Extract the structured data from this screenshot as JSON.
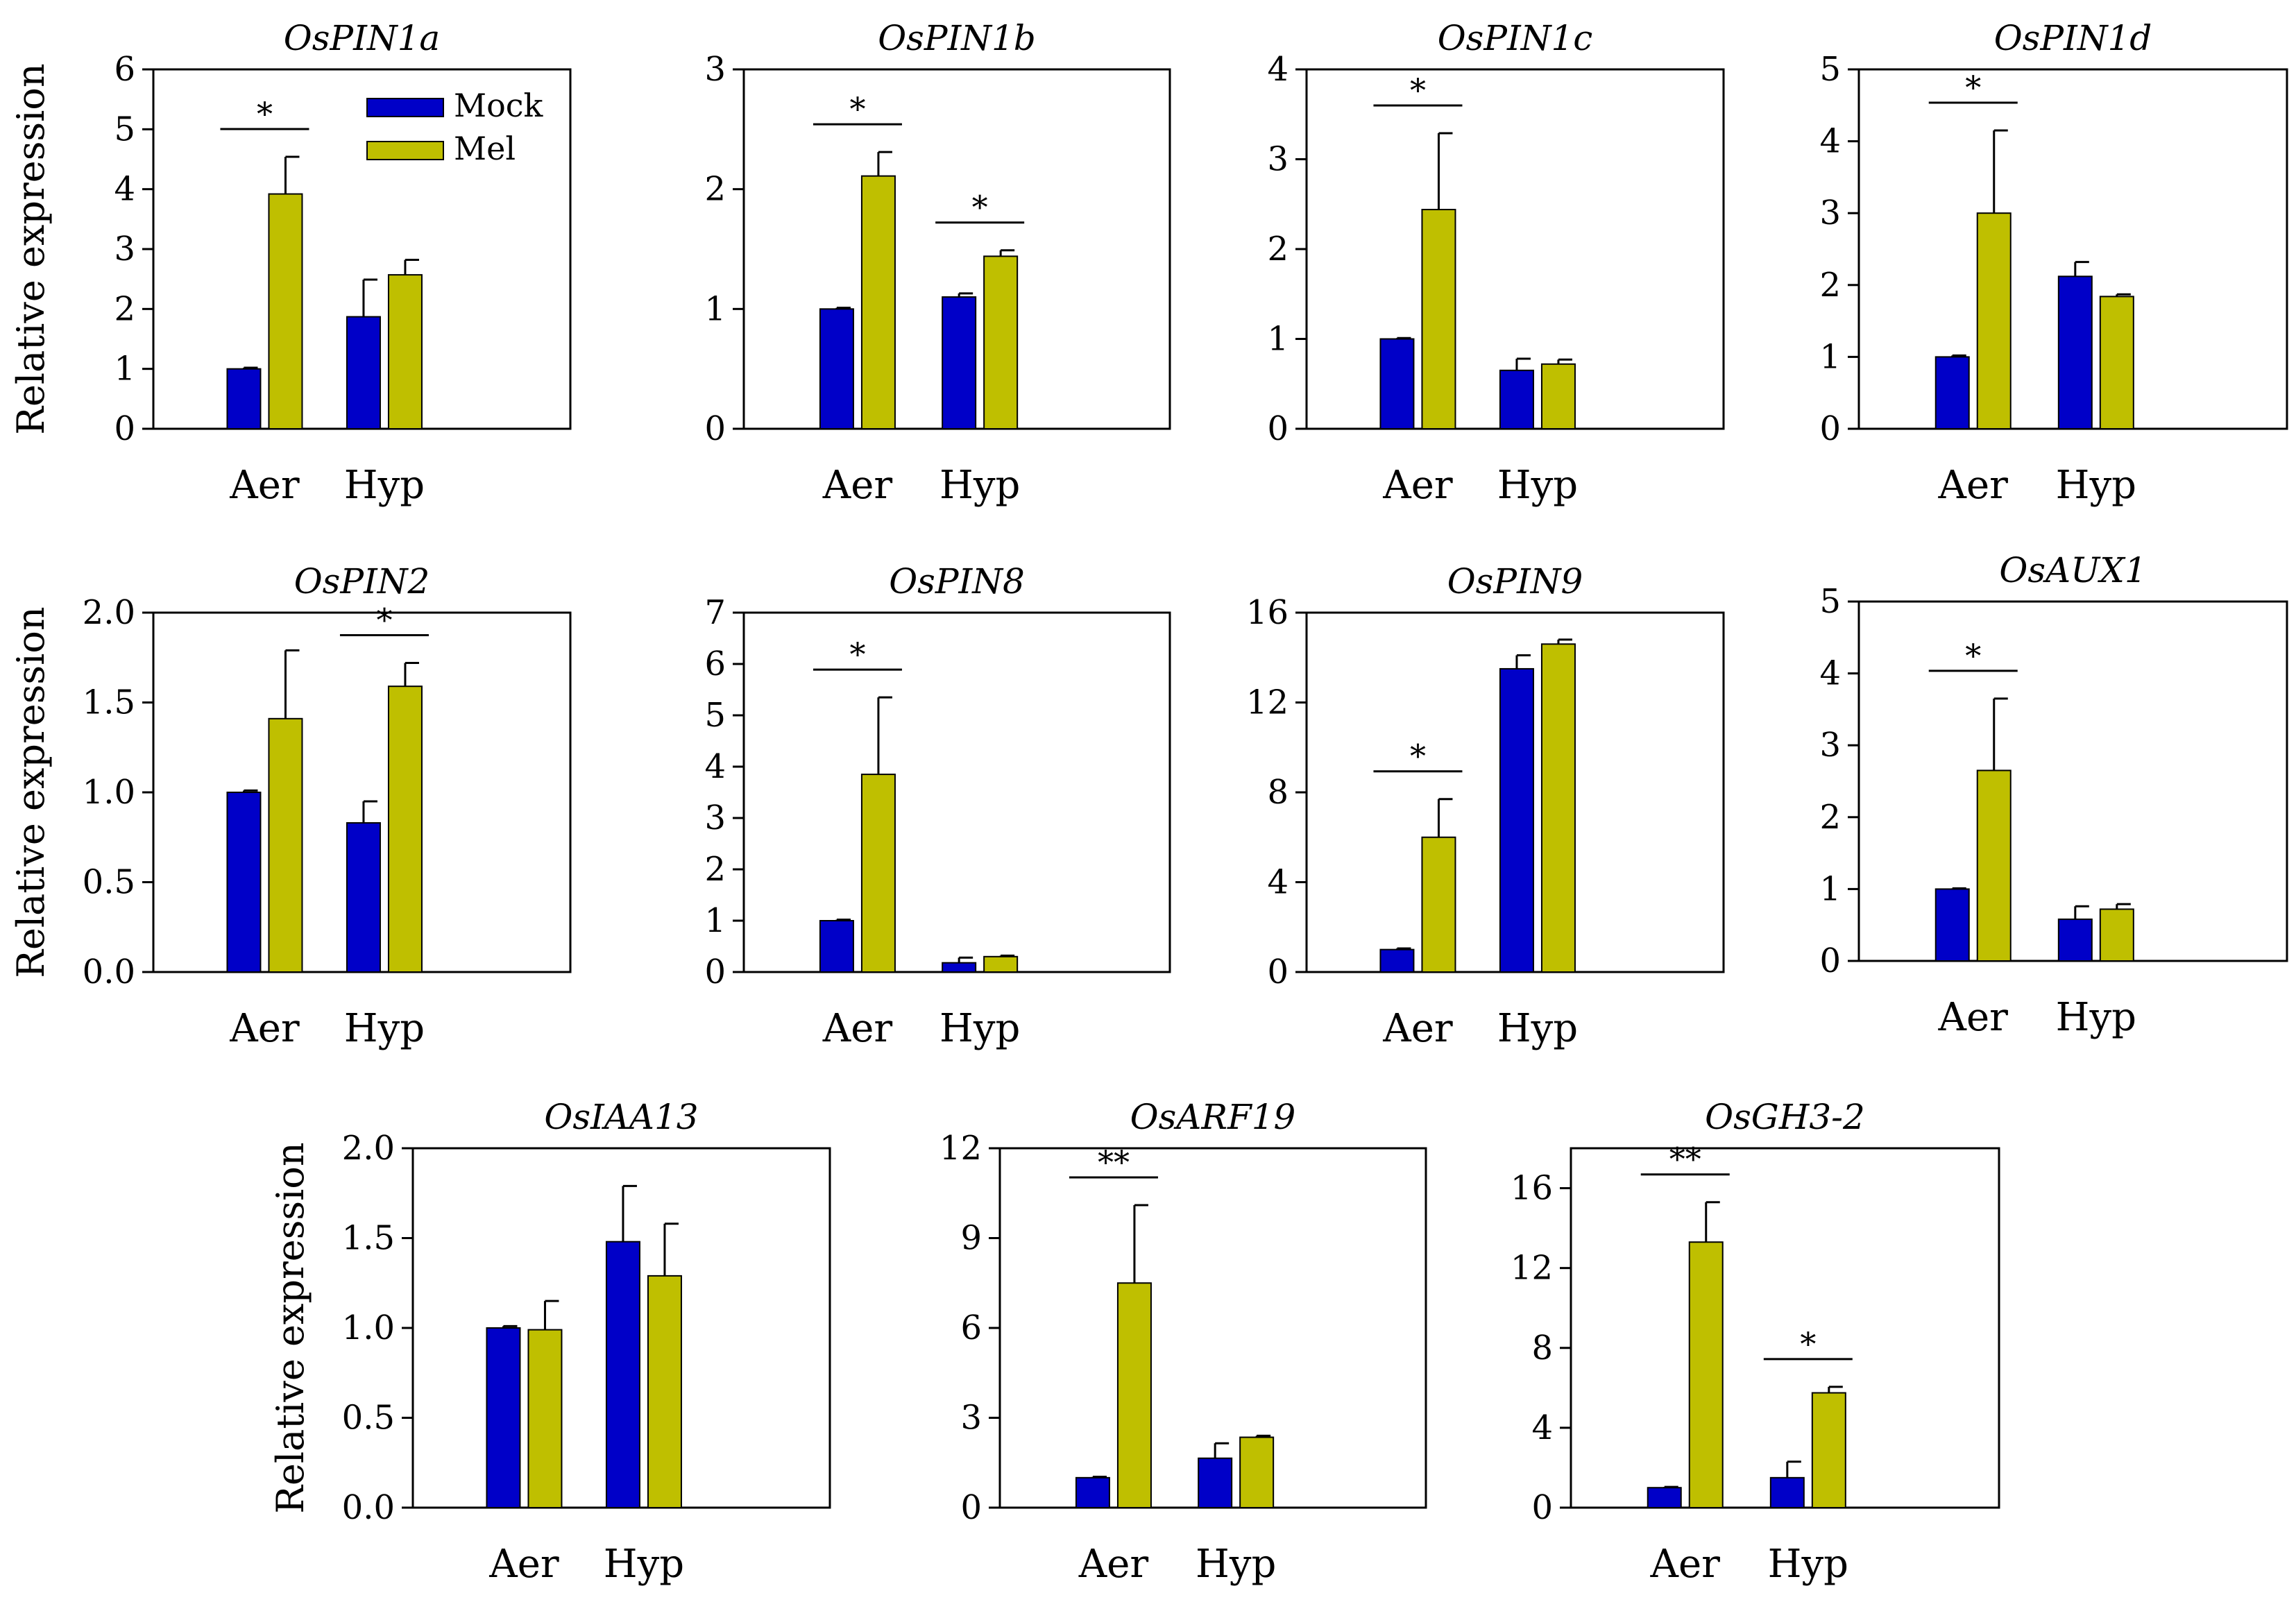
{
  "figure": {
    "ylabel": "Relative expression",
    "categories": [
      "Aer",
      "Hyp"
    ],
    "legend": {
      "items": [
        {
          "label": "Mock"
        },
        {
          "label": "Mel"
        }
      ]
    },
    "colors": {
      "mock": "#0000c8",
      "mel": "#bfbf00",
      "axis": "#000000"
    }
  },
  "chart_data": [
    {
      "type": "bar",
      "title": "OsPIN1a",
      "ylabel": "Relative expression",
      "categories": [
        "Aer",
        "Hyp"
      ],
      "ylim": [
        0,
        6
      ],
      "ticks": [
        "0",
        "1",
        "2",
        "3",
        "4",
        "5",
        "6"
      ],
      "series": [
        {
          "name": "Mock",
          "values": [
            1.0,
            1.87
          ],
          "errors": [
            0.02,
            0.62
          ]
        },
        {
          "name": "Mel",
          "values": [
            3.92,
            2.57
          ],
          "errors": [
            0.62,
            0.25
          ]
        }
      ],
      "significance": [
        {
          "category": "Aer",
          "label": "*"
        }
      ]
    },
    {
      "type": "bar",
      "title": "OsPIN1b",
      "ylabel": "",
      "categories": [
        "Aer",
        "Hyp"
      ],
      "ylim": [
        0,
        3
      ],
      "ticks": [
        "0",
        "1",
        "2",
        "3"
      ],
      "series": [
        {
          "name": "Mock",
          "values": [
            1.0,
            1.1
          ],
          "errors": [
            0.01,
            0.03
          ]
        },
        {
          "name": "Mel",
          "values": [
            2.11,
            1.44
          ],
          "errors": [
            0.2,
            0.05
          ]
        }
      ],
      "significance": [
        {
          "category": "Aer",
          "label": "*"
        },
        {
          "category": "Hyp",
          "label": "*"
        }
      ]
    },
    {
      "type": "bar",
      "title": "OsPIN1c",
      "ylabel": "",
      "categories": [
        "Aer",
        "Hyp"
      ],
      "ylim": [
        0,
        4
      ],
      "ticks": [
        "0",
        "1",
        "2",
        "3",
        "4"
      ],
      "series": [
        {
          "name": "Mock",
          "values": [
            1.0,
            0.65
          ],
          "errors": [
            0.01,
            0.13
          ]
        },
        {
          "name": "Mel",
          "values": [
            2.44,
            0.72
          ],
          "errors": [
            0.85,
            0.05
          ]
        }
      ],
      "significance": [
        {
          "category": "Aer",
          "label": "*"
        }
      ]
    },
    {
      "type": "bar",
      "title": "OsPIN1d",
      "ylabel": "",
      "categories": [
        "Aer",
        "Hyp"
      ],
      "ylim": [
        0,
        5
      ],
      "ticks": [
        "0",
        "1",
        "2",
        "3",
        "4",
        "5"
      ],
      "series": [
        {
          "name": "Mock",
          "values": [
            1.0,
            2.12
          ],
          "errors": [
            0.02,
            0.2
          ]
        },
        {
          "name": "Mel",
          "values": [
            3.0,
            1.84
          ],
          "errors": [
            1.15,
            0.03
          ]
        }
      ],
      "significance": [
        {
          "category": "Aer",
          "label": "*"
        }
      ]
    },
    {
      "type": "bar",
      "title": "OsPIN2",
      "ylabel": "Relative expression",
      "categories": [
        "Aer",
        "Hyp"
      ],
      "ylim": [
        0,
        2
      ],
      "ticks": [
        "0.0",
        "0.5",
        "1.0",
        "1.5",
        "2.0"
      ],
      "series": [
        {
          "name": "Mock",
          "values": [
            1.0,
            0.83
          ],
          "errors": [
            0.01,
            0.12
          ]
        },
        {
          "name": "Mel",
          "values": [
            1.41,
            1.59
          ],
          "errors": [
            0.38,
            0.13
          ]
        }
      ],
      "significance": [
        {
          "category": "Hyp",
          "label": "*"
        }
      ]
    },
    {
      "type": "bar",
      "title": "OsPIN8",
      "ylabel": "",
      "categories": [
        "Aer",
        "Hyp"
      ],
      "ylim": [
        0,
        7
      ],
      "ticks": [
        "0",
        "1",
        "2",
        "3",
        "4",
        "5",
        "6",
        "7"
      ],
      "series": [
        {
          "name": "Mock",
          "values": [
            1.0,
            0.18
          ],
          "errors": [
            0.02,
            0.1
          ]
        },
        {
          "name": "Mel",
          "values": [
            3.85,
            0.3
          ],
          "errors": [
            1.5,
            0.02
          ]
        }
      ],
      "significance": [
        {
          "category": "Aer",
          "label": "*"
        }
      ]
    },
    {
      "type": "bar",
      "title": "OsPIN9",
      "ylabel": "",
      "categories": [
        "Aer",
        "Hyp"
      ],
      "ylim": [
        0,
        16
      ],
      "ticks": [
        "0",
        "4",
        "8",
        "12",
        "16"
      ],
      "series": [
        {
          "name": "Mock",
          "values": [
            1.0,
            13.5
          ],
          "errors": [
            0.05,
            0.6
          ]
        },
        {
          "name": "Mel",
          "values": [
            6.0,
            14.6
          ],
          "errors": [
            1.7,
            0.2
          ]
        }
      ],
      "significance": [
        {
          "category": "Aer",
          "label": "*"
        }
      ]
    },
    {
      "type": "bar",
      "title": "OsAUX1",
      "ylabel": "",
      "categories": [
        "Aer",
        "Hyp"
      ],
      "ylim": [
        0,
        5
      ],
      "ticks": [
        "0",
        "1",
        "2",
        "3",
        "4",
        "5"
      ],
      "series": [
        {
          "name": "Mock",
          "values": [
            1.0,
            0.58
          ],
          "errors": [
            0.01,
            0.18
          ]
        },
        {
          "name": "Mel",
          "values": [
            2.65,
            0.72
          ],
          "errors": [
            1.0,
            0.07
          ]
        }
      ],
      "significance": [
        {
          "category": "Aer",
          "label": "*"
        }
      ]
    },
    {
      "type": "bar",
      "title": "OsIAA13",
      "ylabel": "Relative expression",
      "categories": [
        "Aer",
        "Hyp"
      ],
      "ylim": [
        0,
        2
      ],
      "ticks": [
        "0.0",
        "0.5",
        "1.0",
        "1.5",
        "2.0"
      ],
      "series": [
        {
          "name": "Mock",
          "values": [
            1.0,
            1.48
          ],
          "errors": [
            0.01,
            0.31
          ]
        },
        {
          "name": "Mel",
          "values": [
            0.99,
            1.29
          ],
          "errors": [
            0.16,
            0.29
          ]
        }
      ],
      "significance": []
    },
    {
      "type": "bar",
      "title": "OsARF19",
      "ylabel": "",
      "categories": [
        "Aer",
        "Hyp"
      ],
      "ylim": [
        0,
        12
      ],
      "ticks": [
        "0",
        "3",
        "6",
        "9",
        "12"
      ],
      "series": [
        {
          "name": "Mock",
          "values": [
            1.0,
            1.65
          ],
          "errors": [
            0.03,
            0.5
          ]
        },
        {
          "name": "Mel",
          "values": [
            7.5,
            2.35
          ],
          "errors": [
            2.6,
            0.05
          ]
        }
      ],
      "significance": [
        {
          "category": "Aer",
          "label": "**"
        }
      ]
    },
    {
      "type": "bar",
      "title": "OsGH3-2",
      "ylabel": "",
      "categories": [
        "Aer",
        "Hyp"
      ],
      "ylim": [
        0,
        18
      ],
      "ticks": [
        "0",
        "4",
        "8",
        "12",
        "16"
      ],
      "series": [
        {
          "name": "Mock",
          "values": [
            1.0,
            1.5
          ],
          "errors": [
            0.04,
            0.8
          ]
        },
        {
          "name": "Mel",
          "values": [
            13.3,
            5.75
          ],
          "errors": [
            2.0,
            0.3
          ]
        }
      ],
      "significance": [
        {
          "category": "Aer",
          "label": "**"
        },
        {
          "category": "Hyp",
          "label": "*"
        }
      ]
    }
  ]
}
